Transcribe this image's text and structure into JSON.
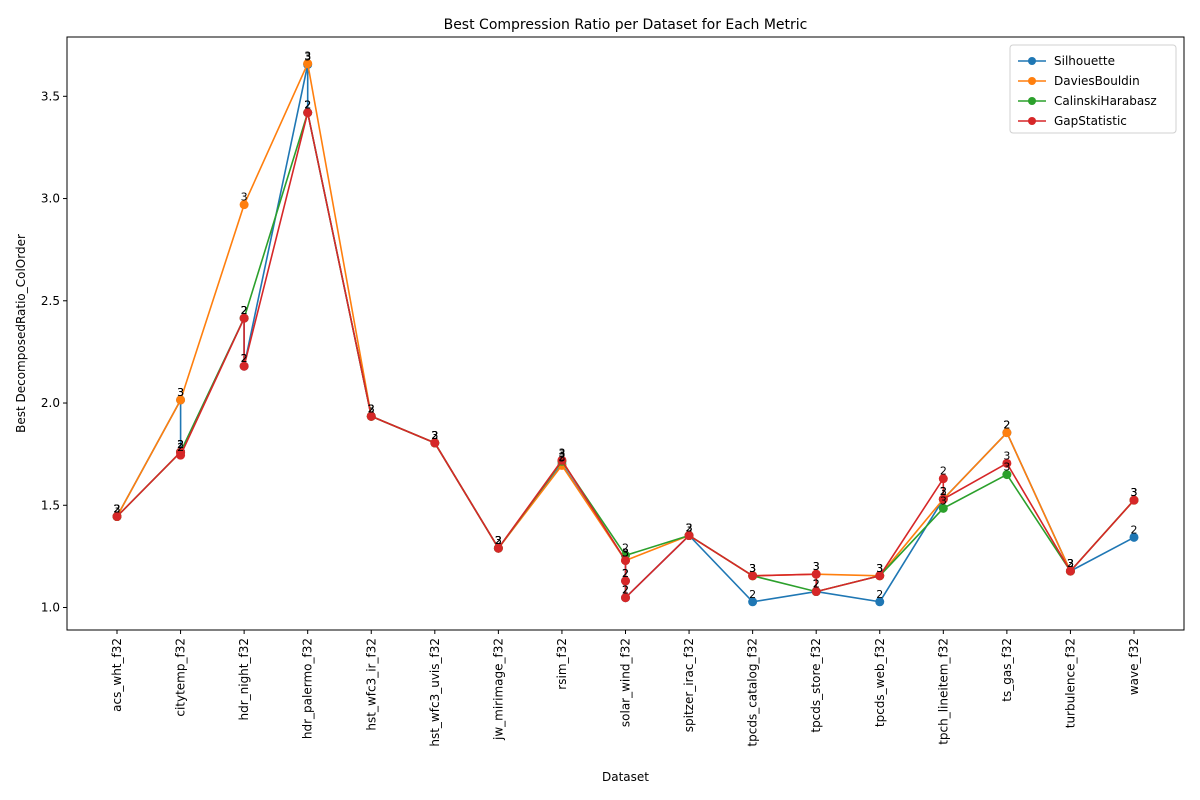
{
  "chart_data": {
    "type": "line",
    "title": "Best Compression Ratio per Dataset for Each Metric",
    "xlabel": "Dataset",
    "ylabel": "Best DecomposedRatio_ColOrder",
    "ylim": [
      0.89,
      3.79
    ],
    "yticks": [
      "1.0",
      "1.5",
      "2.0",
      "2.5",
      "3.0",
      "3.5"
    ],
    "legend_position": "top-right",
    "grid": false,
    "categories": [
      "acs_wht_f32",
      "citytemp_f32",
      "hdr_night_f32",
      "hdr_palermo_f32",
      "hst_wfc3_ir_f32",
      "hst_wfc3_uvis_f32",
      "jw_mirimage_f32",
      "rsim_f32",
      "solar_wind_f32",
      "spitzer_irac_f32",
      "tpcds_catalog_f32",
      "tpcds_store_f32",
      "tpcds_web_f32",
      "tpch_lineitem_f32",
      "ts_gas_f32",
      "turbulence_f32",
      "wave_f32"
    ],
    "series": [
      {
        "name": "Silhouette",
        "color": "#1f77b4",
        "points": [
          {
            "x": 0,
            "y": 1.445,
            "label": "2"
          },
          {
            "x": 1,
            "y": 2.015,
            "label": "3"
          },
          {
            "x": 1,
            "y": 1.76,
            "label": "2"
          },
          {
            "x": 2,
            "y": 2.415,
            "label": "2"
          },
          {
            "x": 2,
            "y": 2.18,
            "label": "2"
          },
          {
            "x": 3,
            "y": 3.655,
            "label": "3"
          },
          {
            "x": 3,
            "y": 3.42,
            "label": "2"
          },
          {
            "x": 4,
            "y": 1.935,
            "label": "2"
          },
          {
            "x": 5,
            "y": 1.805,
            "label": "2"
          },
          {
            "x": 6,
            "y": 1.29,
            "label": "2"
          },
          {
            "x": 7,
            "y": 1.7,
            "label": "2"
          },
          {
            "x": 8,
            "y": 1.23,
            "label": "3"
          },
          {
            "x": 8,
            "y": 1.13,
            "label": "2"
          },
          {
            "x": 8,
            "y": 1.048,
            "label": "2"
          },
          {
            "x": 9,
            "y": 1.352,
            "label": "2"
          },
          {
            "x": 10,
            "y": 1.028,
            "label": "2"
          },
          {
            "x": 11,
            "y": 1.078,
            "label": "2"
          },
          {
            "x": 12,
            "y": 1.028,
            "label": "2"
          },
          {
            "x": 13,
            "y": 1.53,
            "label": "2"
          },
          {
            "x": 14,
            "y": 1.855,
            "label": "2"
          },
          {
            "x": 15,
            "y": 1.178,
            "label": "2"
          },
          {
            "x": 16,
            "y": 1.343,
            "label": "2"
          }
        ]
      },
      {
        "name": "DaviesBouldin",
        "color": "#ff7f0e",
        "points": [
          {
            "x": 0,
            "y": 1.445,
            "label": "3"
          },
          {
            "x": 1,
            "y": 2.015,
            "label": "3"
          },
          {
            "x": 2,
            "y": 2.97,
            "label": "3"
          },
          {
            "x": 3,
            "y": 3.66,
            "label": "3"
          },
          {
            "x": 4,
            "y": 1.935,
            "label": "3"
          },
          {
            "x": 5,
            "y": 1.805,
            "label": "3"
          },
          {
            "x": 6,
            "y": 1.29,
            "label": "3"
          },
          {
            "x": 7,
            "y": 1.695,
            "label": "3"
          },
          {
            "x": 8,
            "y": 1.23,
            "label": "3"
          },
          {
            "x": 9,
            "y": 1.352,
            "label": "3"
          },
          {
            "x": 10,
            "y": 1.155,
            "label": "3"
          },
          {
            "x": 11,
            "y": 1.163,
            "label": "3"
          },
          {
            "x": 12,
            "y": 1.155,
            "label": "3"
          },
          {
            "x": 13,
            "y": 1.53,
            "label": "3"
          },
          {
            "x": 14,
            "y": 1.855,
            "label": "2"
          },
          {
            "x": 15,
            "y": 1.178,
            "label": "3"
          },
          {
            "x": 16,
            "y": 1.525,
            "label": "3"
          }
        ]
      },
      {
        "name": "CalinskiHarabasz",
        "color": "#2ca02c",
        "points": [
          {
            "x": 0,
            "y": 1.445,
            "label": "2"
          },
          {
            "x": 1,
            "y": 1.76,
            "label": "2"
          },
          {
            "x": 2,
            "y": 2.415,
            "label": "2"
          },
          {
            "x": 3,
            "y": 3.42,
            "label": "2"
          },
          {
            "x": 4,
            "y": 1.935,
            "label": "2"
          },
          {
            "x": 5,
            "y": 1.805,
            "label": "2"
          },
          {
            "x": 6,
            "y": 1.29,
            "label": "2"
          },
          {
            "x": 7,
            "y": 1.715,
            "label": "3"
          },
          {
            "x": 8,
            "y": 1.255,
            "label": "2"
          },
          {
            "x": 9,
            "y": 1.352,
            "label": "3"
          },
          {
            "x": 10,
            "y": 1.155,
            "label": "3"
          },
          {
            "x": 11,
            "y": 1.078,
            "label": "2"
          },
          {
            "x": 12,
            "y": 1.155,
            "label": "3"
          },
          {
            "x": 13,
            "y": 1.485,
            "label": "3"
          },
          {
            "x": 14,
            "y": 1.65,
            "label": "3"
          },
          {
            "x": 15,
            "y": 1.178,
            "label": "3"
          },
          {
            "x": 16,
            "y": 1.525,
            "label": "3"
          }
        ]
      },
      {
        "name": "GapStatistic",
        "color": "#d62728",
        "points": [
          {
            "x": 0,
            "y": 1.445,
            "label": "3"
          },
          {
            "x": 1,
            "y": 1.76,
            "label": "2"
          },
          {
            "x": 1,
            "y": 1.745,
            "label": "2"
          },
          {
            "x": 2,
            "y": 2.415,
            "label": "2"
          },
          {
            "x": 2,
            "y": 2.18,
            "label": "2"
          },
          {
            "x": 3,
            "y": 3.42,
            "label": "2"
          },
          {
            "x": 4,
            "y": 1.935,
            "label": "3"
          },
          {
            "x": 5,
            "y": 1.805,
            "label": "3"
          },
          {
            "x": 6,
            "y": 1.29,
            "label": "3"
          },
          {
            "x": 7,
            "y": 1.72,
            "label": "3"
          },
          {
            "x": 8,
            "y": 1.23,
            "label": "3"
          },
          {
            "x": 8,
            "y": 1.13,
            "label": "2"
          },
          {
            "x": 8,
            "y": 1.048,
            "label": "2"
          },
          {
            "x": 9,
            "y": 1.352,
            "label": "3"
          },
          {
            "x": 10,
            "y": 1.155,
            "label": "3"
          },
          {
            "x": 11,
            "y": 1.163,
            "label": "3"
          },
          {
            "x": 11,
            "y": 1.078,
            "label": "2"
          },
          {
            "x": 12,
            "y": 1.155,
            "label": "3"
          },
          {
            "x": 13,
            "y": 1.63,
            "label": "2"
          },
          {
            "x": 13,
            "y": 1.53,
            "label": "2"
          },
          {
            "x": 14,
            "y": 1.705,
            "label": "3"
          },
          {
            "x": 15,
            "y": 1.178,
            "label": "3"
          },
          {
            "x": 16,
            "y": 1.525,
            "label": "3"
          }
        ]
      }
    ]
  }
}
